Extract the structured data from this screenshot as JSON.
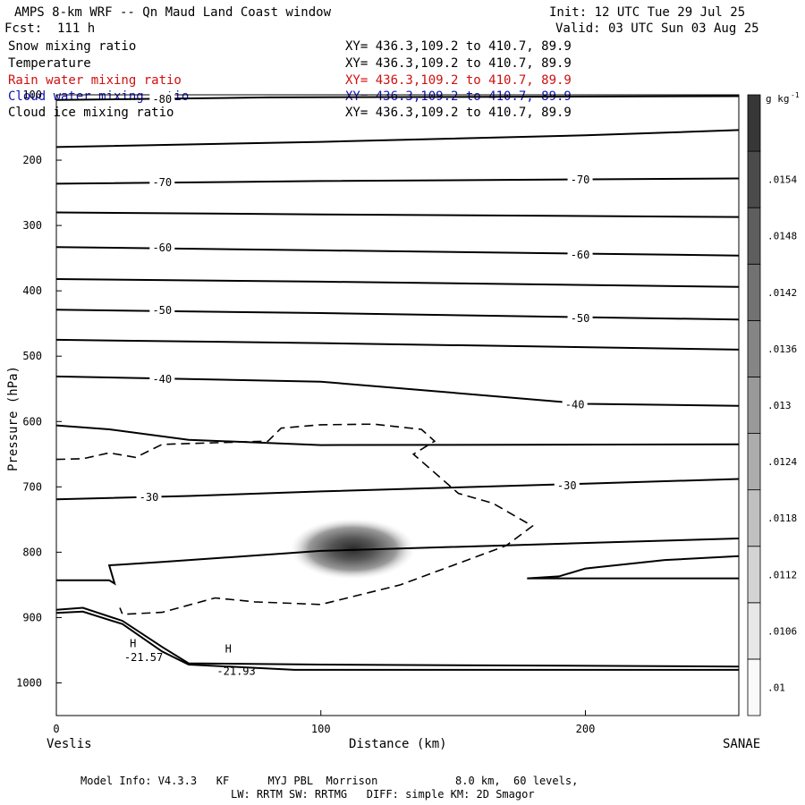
{
  "header": {
    "title": "AMPS 8-km WRF -- Qn Maud Land Coast window",
    "init": "Init: 12 UTC Tue 29 Jul 25",
    "forecast": "Fcst:  111 h",
    "valid": "Valid: 03 UTC Sun 03 Aug 25"
  },
  "fields": [
    {
      "name": "Snow mixing ratio",
      "xy": "XY= 436.3,109.2 to 410.7, 89.9",
      "color": "#000000"
    },
    {
      "name": "Temperature",
      "xy": "XY= 436.3,109.2 to 410.7, 89.9",
      "color": "#000000"
    },
    {
      "name": "Rain water mixing ratio",
      "xy": "XY= 436.3,109.2 to 410.7, 89.9",
      "color": "#d01010"
    },
    {
      "name": "Cloud water mixing ratio",
      "xy": "XY= 436.3,109.2 to 410.7, 89.9",
      "color": "#1010c0"
    },
    {
      "name": "Cloud ice mixing ratio",
      "xy": "XY= 436.3,109.2 to 410.7, 89.9",
      "color": "#000000"
    }
  ],
  "footer": {
    "line1": "Model Info: V4.3.3   KF      MYJ PBL  Morrison            8.0 km,  60 levels,",
    "line2": "LW: RRTM SW: RRTMG   DIFF: simple KM: 2D Smagor"
  },
  "chart_data": {
    "type": "contour",
    "xlabel": "Distance (km)",
    "ylabel": "Pressure (hPa)",
    "xlim": [
      0,
      258
    ],
    "ylim": [
      1050,
      100
    ],
    "x_ticks": [
      0,
      100,
      200
    ],
    "y_ticks": [
      100,
      200,
      300,
      400,
      500,
      600,
      700,
      800,
      900,
      1000
    ],
    "left_endpoint": "Veslis",
    "right_endpoint": "SANAE",
    "colorbar": {
      "unit_base": "g kg",
      "unit_exp": "-1",
      "levels": [
        ".01",
        ".0106",
        ".0112",
        ".0118",
        ".0124",
        ".013",
        ".0136",
        ".0142",
        ".0148",
        ".0154"
      ]
    },
    "temperature_labels": [
      {
        "text": "-80",
        "x": 40,
        "p": 107
      },
      {
        "text": "-70",
        "x": 40,
        "p": 234
      },
      {
        "text": "-70",
        "x": 198,
        "p": 230
      },
      {
        "text": "-60",
        "x": 40,
        "p": 334
      },
      {
        "text": "-60",
        "x": 198,
        "p": 345
      },
      {
        "text": "-50",
        "x": 40,
        "p": 430
      },
      {
        "text": "-50",
        "x": 198,
        "p": 442
      },
      {
        "text": "-40",
        "x": 40,
        "p": 535
      },
      {
        "text": "-40",
        "x": 196,
        "p": 574
      },
      {
        "text": "-30",
        "x": 35,
        "p": 716
      },
      {
        "text": "-30",
        "x": 193,
        "p": 698
      }
    ],
    "extrema_labels": [
      {
        "text": "H",
        "x": 29,
        "p": 940
      },
      {
        "text": "-21.57",
        "x": 33,
        "p": 961
      },
      {
        "text": "H",
        "x": 65,
        "p": 948
      },
      {
        "text": "-21.93",
        "x": 68,
        "p": 982
      }
    ],
    "isotherms": [
      [
        [
          0,
          108
        ],
        [
          80,
          104
        ],
        [
          258,
          102
        ]
      ],
      [
        [
          0,
          180
        ],
        [
          100,
          172
        ],
        [
          200,
          162
        ],
        [
          258,
          154
        ]
      ],
      [
        [
          0,
          236
        ],
        [
          100,
          232
        ],
        [
          258,
          228
        ]
      ],
      [
        [
          0,
          280
        ],
        [
          100,
          283
        ],
        [
          258,
          287
        ]
      ],
      [
        [
          0,
          333
        ],
        [
          100,
          338
        ],
        [
          258,
          346
        ]
      ],
      [
        [
          0,
          382
        ],
        [
          100,
          386
        ],
        [
          258,
          394
        ]
      ],
      [
        [
          0,
          429
        ],
        [
          100,
          434
        ],
        [
          258,
          444
        ]
      ],
      [
        [
          0,
          475
        ],
        [
          100,
          480
        ],
        [
          258,
          490
        ]
      ],
      [
        [
          0,
          531
        ],
        [
          100,
          539
        ],
        [
          200,
          573
        ],
        [
          258,
          576
        ]
      ],
      [
        [
          0,
          606
        ],
        [
          20,
          612
        ],
        [
          50,
          628
        ],
        [
          100,
          636
        ],
        [
          258,
          635
        ]
      ],
      [
        [
          0,
          719
        ],
        [
          50,
          714
        ],
        [
          100,
          707
        ],
        [
          200,
          695
        ],
        [
          258,
          688
        ]
      ],
      [
        [
          0,
          843
        ],
        [
          20,
          843
        ],
        [
          22,
          848
        ],
        [
          20,
          820
        ],
        [
          40,
          815
        ],
        [
          100,
          798
        ],
        [
          258,
          779
        ]
      ],
      [
        [
          178,
          840
        ],
        [
          190,
          837
        ],
        [
          200,
          825
        ],
        [
          230,
          812
        ],
        [
          258,
          806
        ]
      ],
      [
        [
          178,
          840
        ],
        [
          258,
          840
        ]
      ],
      [
        [
          0,
          888
        ],
        [
          10,
          885
        ],
        [
          25,
          905
        ],
        [
          40,
          945
        ],
        [
          50,
          970
        ],
        [
          100,
          972
        ],
        [
          258,
          975
        ]
      ],
      [
        [
          0,
          893
        ],
        [
          10,
          891
        ],
        [
          25,
          910
        ],
        [
          40,
          952
        ],
        [
          50,
          972
        ],
        [
          90,
          980
        ],
        [
          258,
          980
        ]
      ]
    ],
    "dashed_contour": [
      [
        0,
        658
      ],
      [
        10,
        657
      ],
      [
        20,
        648
      ],
      [
        30,
        655
      ],
      [
        40,
        635
      ],
      [
        80,
        630
      ],
      [
        85,
        610
      ],
      [
        100,
        605
      ],
      [
        120,
        604
      ],
      [
        138,
        612
      ],
      [
        143,
        630
      ],
      [
        135,
        650
      ],
      [
        152,
        710
      ],
      [
        165,
        725
      ],
      [
        180,
        760
      ],
      [
        170,
        790
      ],
      [
        130,
        850
      ],
      [
        100,
        880
      ],
      [
        75,
        876
      ],
      [
        60,
        870
      ],
      [
        40,
        892
      ],
      [
        25,
        895
      ],
      [
        24,
        885
      ]
    ],
    "shaded_max": {
      "x": 112,
      "p": 795,
      "value_range": [
        0.01,
        0.0154
      ]
    }
  }
}
